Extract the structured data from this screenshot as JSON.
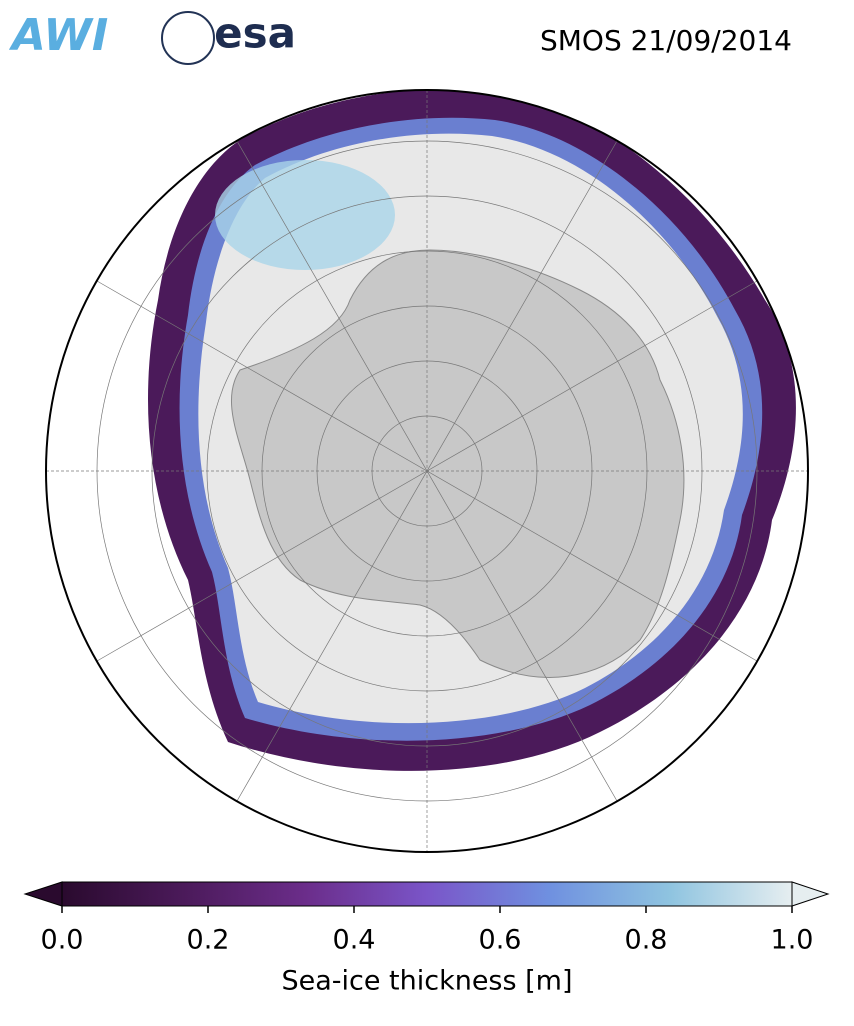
{
  "title": "SMOS 21/09/2014",
  "logos": [
    "AWI",
    "esa"
  ],
  "colorbar": {
    "label": "Sea-ice thickness [m]",
    "lim": [
      0,
      1
    ],
    "ticks": [
      {
        "value": 0,
        "label": "0.0"
      },
      {
        "value": 0.2,
        "label": "0.2"
      },
      {
        "value": 0.4,
        "label": "0.4"
      },
      {
        "value": 0.6,
        "label": "0.6"
      },
      {
        "value": 0.8,
        "label": "0.8"
      },
      {
        "value": 1,
        "label": "1.0"
      }
    ],
    "colors": [
      "#2a0a2e",
      "#4b1a5a",
      "#6b2d8a",
      "#7a55c8",
      "#6f90e0",
      "#8fc4e0",
      "#e6eef0"
    ]
  }
}
